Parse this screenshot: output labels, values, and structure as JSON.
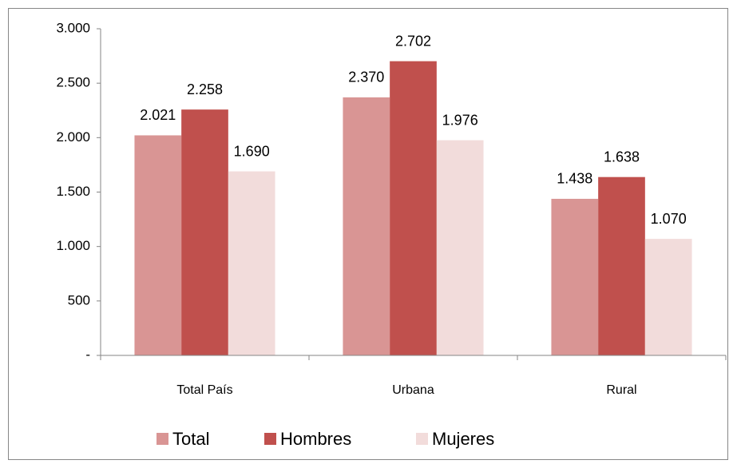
{
  "chart_data": {
    "type": "bar",
    "categories": [
      "Total País",
      "Urbana",
      "Rural"
    ],
    "series": [
      {
        "name": "Total",
        "color": "#d99594",
        "values": [
          2021,
          2370,
          1438
        ],
        "value_labels": [
          "2.021",
          "2.370",
          "1.438"
        ]
      },
      {
        "name": "Hombres",
        "color": "#c0504d",
        "values": [
          2258,
          2702,
          1638
        ],
        "value_labels": [
          "2.258",
          "2.702",
          "1.638"
        ]
      },
      {
        "name": "Mujeres",
        "color": "#f2dcdb",
        "values": [
          1690,
          1976,
          1070
        ],
        "value_labels": [
          "1.690",
          "1.976",
          "1.070"
        ]
      }
    ],
    "ylim": [
      0,
      3000
    ],
    "yticks": [
      {
        "value": 0,
        "label": "-"
      },
      500,
      {
        "value": 1000,
        "label": "1.000"
      },
      {
        "value": 1500,
        "label": "1.500"
      },
      {
        "value": 2000,
        "label": "2.000"
      },
      {
        "value": 2500,
        "label": "2.500"
      },
      {
        "value": 3000,
        "label": "3.000"
      }
    ],
    "legend": "bottom"
  }
}
